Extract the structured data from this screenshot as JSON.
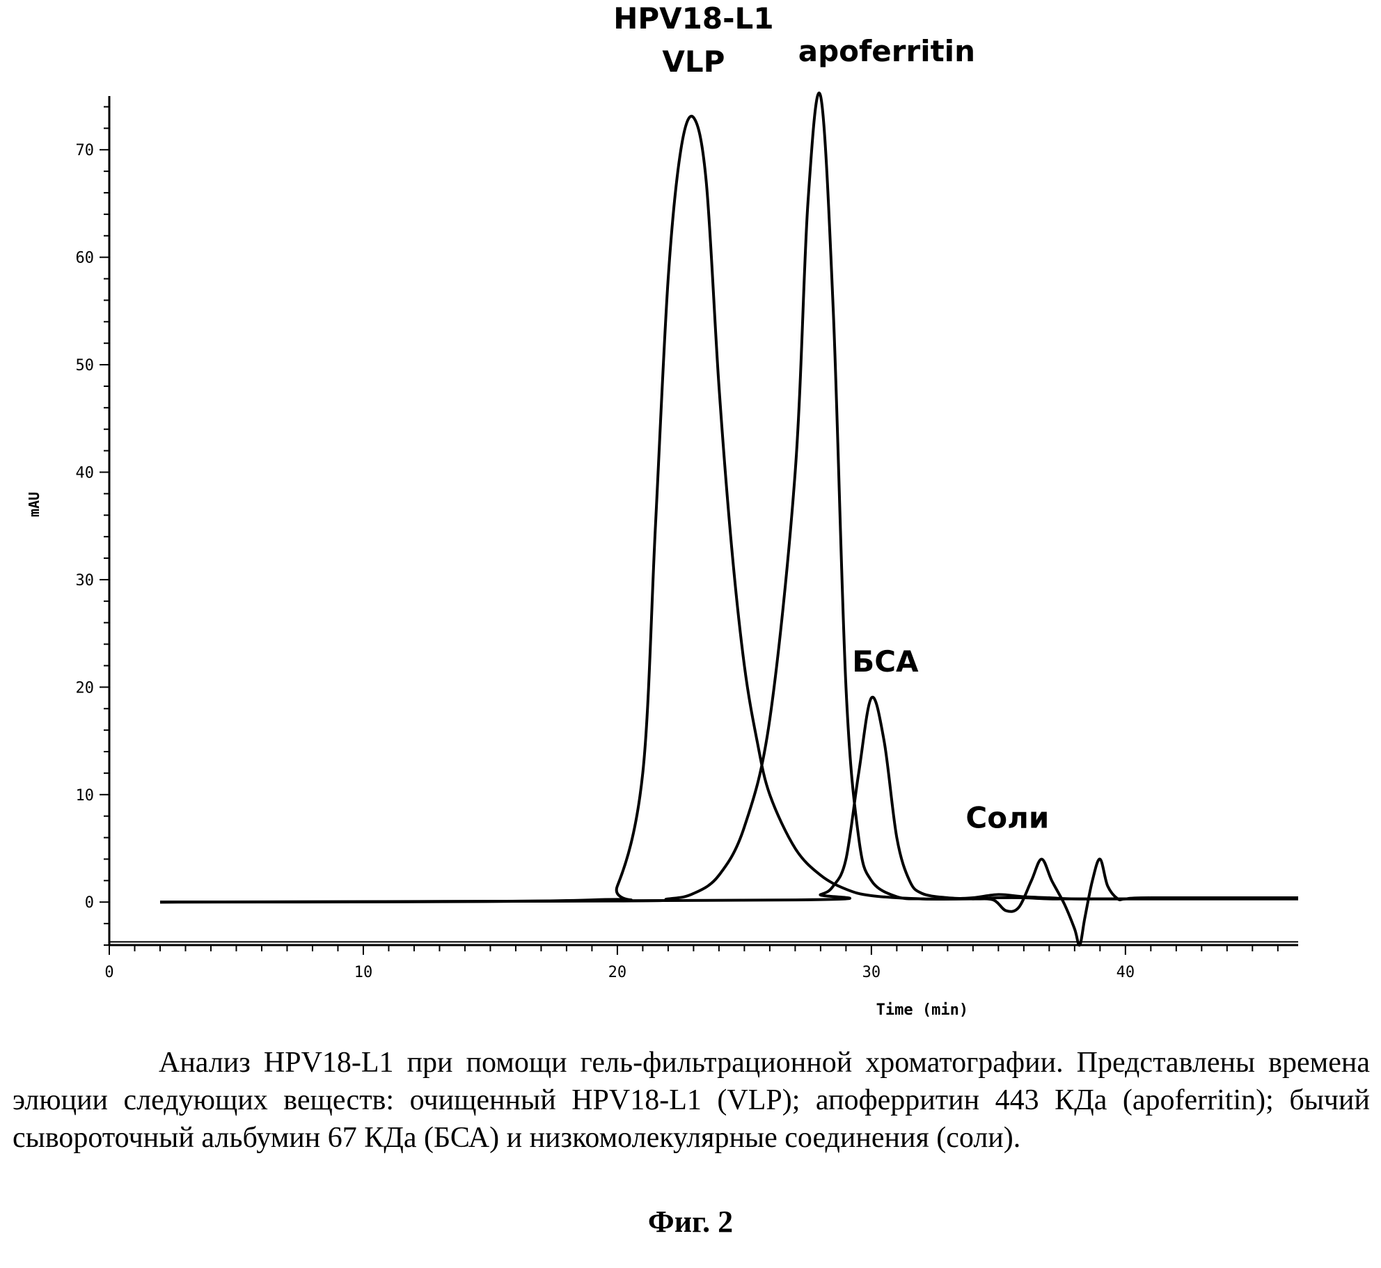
{
  "chart_data": {
    "type": "line",
    "xlabel": "Time (min)",
    "ylabel": "mAU",
    "xlim": [
      0,
      46.8
    ],
    "ylim": [
      -4,
      75
    ],
    "x_ticks": [
      0,
      10,
      20,
      30,
      40
    ],
    "y_ticks": [
      0,
      10,
      20,
      30,
      40,
      50,
      60,
      70
    ],
    "grid": false,
    "series": [
      {
        "annotation": "HPV18-L1 VLP",
        "x": [
          2,
          19,
          20,
          21,
          21.5,
          22,
          22.5,
          23,
          23.5,
          24,
          24.5,
          25,
          25.5,
          26,
          27,
          28,
          29,
          30,
          32,
          34,
          35,
          36,
          37,
          38,
          40,
          46.8
        ],
        "y": [
          0,
          0.2,
          1.5,
          12,
          35,
          58,
          70,
          73,
          67,
          48,
          33,
          22,
          15,
          10,
          5,
          2.5,
          1.2,
          0.6,
          0.3,
          0.3,
          0.4,
          0.4,
          0.3,
          0.3,
          0.3,
          0.3
        ]
      },
      {
        "annotation": "apoferritin",
        "x": [
          2,
          20,
          22,
          23,
          24,
          25,
          26,
          27,
          27.5,
          28,
          28.5,
          29,
          29.5,
          30,
          31,
          32,
          33,
          34,
          35,
          36,
          37,
          38,
          40,
          46.8
        ],
        "y": [
          0,
          0.1,
          0.3,
          0.8,
          2.5,
          7,
          17,
          40,
          65,
          75,
          55,
          20,
          6,
          2,
          0.5,
          0.3,
          0.3,
          0.4,
          0.7,
          0.5,
          0.4,
          0.3,
          0.3,
          0.3
        ]
      },
      {
        "annotation": "БСА, Соли",
        "x": [
          2,
          27,
          28,
          28.5,
          29,
          29.5,
          30,
          30.5,
          31,
          31.5,
          32,
          33,
          34,
          34.8,
          35.3,
          35.8,
          36.3,
          36.7,
          37.1,
          37.6,
          38,
          38.2,
          38.4,
          38.7,
          39,
          39.3,
          39.7,
          40,
          41,
          46.8
        ],
        "y": [
          0,
          0.2,
          0.7,
          1.5,
          4,
          12,
          19,
          15,
          6,
          2,
          0.8,
          0.4,
          0.3,
          0.2,
          -0.8,
          -0.5,
          2,
          4,
          2,
          -0.2,
          -2.5,
          -4,
          -1.5,
          2,
          4,
          1.5,
          0.3,
          0.3,
          0.4,
          0.4
        ]
      }
    ],
    "peak_labels": [
      {
        "lines": [
          "HPV18-L1",
          "VLP"
        ],
        "x": 23,
        "y": 73
      },
      {
        "lines": [
          "apoferritin"
        ],
        "x": 28,
        "y": 75
      },
      {
        "lines": [
          "БСА"
        ],
        "x": 30,
        "y": 19
      },
      {
        "lines": [
          "Соли"
        ],
        "x": 37,
        "y": 4
      }
    ]
  },
  "caption": {
    "text": "Анализ HPV18-L1 при помощи гель-фильтрационной хроматографии. Представлены времена элюции следующих веществ: очищенный HPV18-L1 (VLP); апоферритин 443 КДа (apoferritin); бычий сывороточный альбумин 67 КДа (БСА) и низкомолекулярные соединения (соли)."
  },
  "figure_label": "Фиг. 2"
}
